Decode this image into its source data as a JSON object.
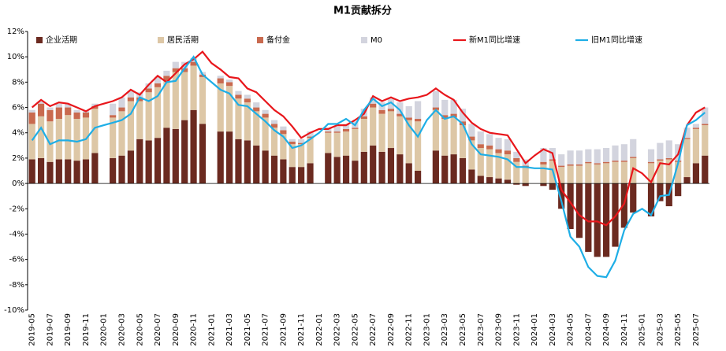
{
  "chart_data": {
    "type": "bar",
    "title": "M1贡献拆分",
    "categories": [
      "2019-05",
      null,
      "2019-07",
      null,
      "2019-09",
      null,
      "2019-11",
      null,
      "2020-01",
      null,
      "2020-03",
      null,
      "2020-05",
      null,
      "2020-07",
      null,
      "2020-09",
      null,
      "2020-11",
      null,
      "2021-01",
      null,
      "2021-03",
      null,
      "2021-05",
      null,
      "2021-07",
      null,
      "2021-09",
      null,
      "2021-11",
      null,
      "2022-01",
      null,
      "2022-03",
      null,
      "2022-05",
      null,
      "2022-07",
      null,
      "2022-09",
      null,
      "2022-11",
      null,
      "2023-01",
      null,
      "2023-03",
      null,
      "2023-05",
      null,
      "2023-07",
      null,
      "2023-09",
      null,
      "2023-11",
      null,
      "2024-01",
      null,
      "2024-03",
      null,
      "2024-05",
      null,
      "2024-07",
      null,
      "2024-09",
      null,
      "2024-11",
      null,
      "2025-01",
      null,
      "2025-03",
      null,
      "2025-05",
      null,
      "2025-07",
      null
    ],
    "series": [
      {
        "name": "企业活期",
        "kind": "bar",
        "color": "#6b2a20",
        "values": [
          1.9,
          2.0,
          1.7,
          1.9,
          1.9,
          1.8,
          1.9,
          2.4,
          null,
          2.0,
          2.2,
          2.6,
          3.5,
          3.4,
          3.6,
          4.4,
          4.3,
          5.0,
          5.8,
          4.7,
          null,
          4.1,
          4.1,
          3.5,
          3.4,
          3.0,
          2.6,
          2.2,
          1.9,
          1.3,
          1.3,
          1.6,
          null,
          2.4,
          2.1,
          2.2,
          1.8,
          2.5,
          3.0,
          2.5,
          2.8,
          2.3,
          1.6,
          1.0,
          null,
          2.6,
          2.2,
          2.3,
          2.0,
          1.1,
          0.6,
          0.5,
          0.4,
          0.3,
          -0.1,
          -0.2,
          null,
          -0.2,
          -0.5,
          -2.0,
          -3.6,
          -4.3,
          -5.4,
          -5.8,
          -5.8,
          -5.0,
          -3.5,
          -2.3,
          null,
          -2.6,
          -1.4,
          -1.8,
          -1.0,
          0.5,
          1.6,
          2.2
        ]
      },
      {
        "name": "居民活期",
        "kind": "bar",
        "color": "#ddc7a6",
        "values": [
          2.8,
          3.3,
          3.2,
          3.2,
          3.5,
          3.3,
          3.3,
          3.5,
          null,
          3.2,
          3.5,
          3.9,
          3.0,
          3.8,
          4.0,
          3.7,
          4.5,
          3.8,
          3.5,
          3.7,
          null,
          3.8,
          3.6,
          3.2,
          3.0,
          2.7,
          2.6,
          2.2,
          2.0,
          1.8,
          1.8,
          2.0,
          null,
          1.6,
          1.9,
          1.9,
          2.5,
          2.6,
          3.0,
          3.0,
          2.9,
          3.0,
          3.4,
          3.9,
          null,
          3.2,
          2.9,
          2.9,
          2.6,
          2.3,
          2.2,
          2.2,
          2.0,
          2.0,
          1.7,
          1.3,
          null,
          1.5,
          1.8,
          1.3,
          1.4,
          1.4,
          1.6,
          1.5,
          1.6,
          1.7,
          1.7,
          2.0,
          null,
          1.6,
          1.8,
          1.9,
          1.7,
          3.0,
          2.7,
          2.4
        ]
      },
      {
        "name": "备付金",
        "kind": "bar",
        "color": "#c96a4f",
        "values": [
          0.9,
          1.0,
          0.9,
          0.9,
          0.6,
          0.5,
          0.4,
          0.2,
          null,
          0.2,
          0.3,
          0.3,
          0.3,
          0.3,
          0.3,
          0.4,
          0.3,
          0.3,
          0.3,
          0.2,
          null,
          0.4,
          0.3,
          0.3,
          0.3,
          0.3,
          0.3,
          0.3,
          0.3,
          0.2,
          0.1,
          0.1,
          null,
          0.1,
          0.1,
          0.2,
          0.1,
          0.2,
          0.3,
          0.3,
          0.2,
          0.2,
          0.2,
          0.2,
          null,
          0.2,
          0.3,
          0.3,
          0.3,
          0.3,
          0.3,
          0.3,
          0.3,
          0.3,
          0.3,
          0.1,
          null,
          0.2,
          0.1,
          0.1,
          0.1,
          0.1,
          0.1,
          0.1,
          0.1,
          0.1,
          0.1,
          0.1,
          null,
          0.1,
          0.1,
          0.1,
          0.1,
          0.1,
          0.1,
          0.1
        ]
      },
      {
        "name": "M0",
        "kind": "bar",
        "color": "#d3d4de",
        "values": [
          0.2,
          0.2,
          0.2,
          0.3,
          0.3,
          0.2,
          0.2,
          0.2,
          null,
          0.9,
          0.8,
          0.5,
          0.4,
          0.4,
          0.5,
          0.4,
          0.5,
          0.5,
          0.3,
          0.2,
          null,
          0.2,
          0.2,
          0.3,
          0.3,
          0.4,
          0.3,
          0.3,
          0.3,
          0.2,
          0.3,
          0.4,
          null,
          0.3,
          0.4,
          0.4,
          0.5,
          0.6,
          0.5,
          0.6,
          0.8,
          0.9,
          0.9,
          1.4,
          null,
          1.3,
          1.2,
          1.1,
          1.0,
          1.0,
          1.0,
          0.9,
          0.9,
          0.9,
          0.5,
          0.5,
          null,
          1.1,
          0.9,
          0.9,
          1.1,
          1.1,
          1.0,
          1.1,
          1.1,
          1.2,
          1.3,
          1.4,
          null,
          1.0,
          1.3,
          1.4,
          1.3,
          0.8,
          0.3,
          1.3
        ]
      },
      {
        "name": "新M1同比增速",
        "kind": "line",
        "color": "#e8161b",
        "values": [
          6.0,
          6.6,
          6.1,
          6.4,
          6.3,
          6.0,
          5.7,
          6.1,
          6.3,
          6.5,
          6.8,
          7.4,
          7.0,
          7.8,
          8.5,
          8.0,
          8.7,
          9.4,
          9.8,
          10.4,
          9.5,
          9.0,
          8.4,
          8.3,
          7.5,
          7.2,
          6.5,
          5.8,
          5.3,
          4.5,
          3.6,
          4.0,
          4.3,
          4.3,
          4.6,
          4.6,
          5.0,
          5.5,
          6.9,
          6.5,
          6.8,
          6.5,
          6.7,
          6.8,
          7.0,
          7.5,
          7.0,
          6.6,
          5.6,
          4.8,
          4.3,
          4.0,
          3.9,
          3.8,
          2.7,
          1.6,
          2.2,
          2.7,
          2.4,
          -0.5,
          -1.5,
          -2.5,
          -3.0,
          -3.0,
          -3.3,
          -2.6,
          -1.6,
          1.2,
          0.8,
          0.1,
          1.6,
          1.5,
          2.3,
          4.6,
          5.6,
          6.0
        ]
      },
      {
        "name": "旧M1同比增速",
        "kind": "line",
        "color": "#1eaee6",
        "values": [
          3.4,
          4.4,
          3.1,
          3.4,
          3.4,
          3.3,
          3.5,
          4.4,
          4.6,
          4.8,
          5.0,
          5.5,
          6.8,
          6.5,
          6.9,
          8.0,
          8.1,
          9.1,
          10.0,
          8.6,
          8.0,
          7.4,
          7.1,
          6.2,
          6.1,
          5.5,
          4.9,
          4.2,
          3.7,
          2.8,
          3.0,
          3.5,
          4.0,
          4.7,
          4.7,
          5.1,
          4.6,
          5.8,
          6.7,
          6.1,
          6.4,
          5.8,
          4.6,
          3.7,
          5.0,
          5.8,
          5.1,
          5.3,
          4.7,
          3.1,
          2.3,
          2.2,
          2.1,
          1.9,
          1.3,
          1.3,
          1.2,
          1.2,
          1.1,
          -1.4,
          -4.2,
          -5.0,
          -6.6,
          -7.3,
          -7.4,
          -6.1,
          -3.7,
          -2.4,
          -2.0,
          -2.5,
          -1.0,
          -0.9,
          1.6,
          4.6,
          5.0,
          5.6
        ]
      }
    ],
    "ylim": [
      -10,
      12
    ],
    "yticks": [
      {
        "value": -10,
        "label": "-10%"
      },
      {
        "value": -8,
        "label": "-8%"
      },
      {
        "value": -6,
        "label": "-6%"
      },
      {
        "value": -4,
        "label": "-4%"
      },
      {
        "value": -2,
        "label": "-2%"
      },
      {
        "value": 0,
        "label": "0%"
      },
      {
        "value": 2,
        "label": "2%"
      },
      {
        "value": 4,
        "label": "4%"
      },
      {
        "value": 6,
        "label": "6%"
      },
      {
        "value": 8,
        "label": "8%"
      },
      {
        "value": 10,
        "label": "10%"
      },
      {
        "value": 12,
        "label": "12%"
      }
    ],
    "grid": false
  }
}
